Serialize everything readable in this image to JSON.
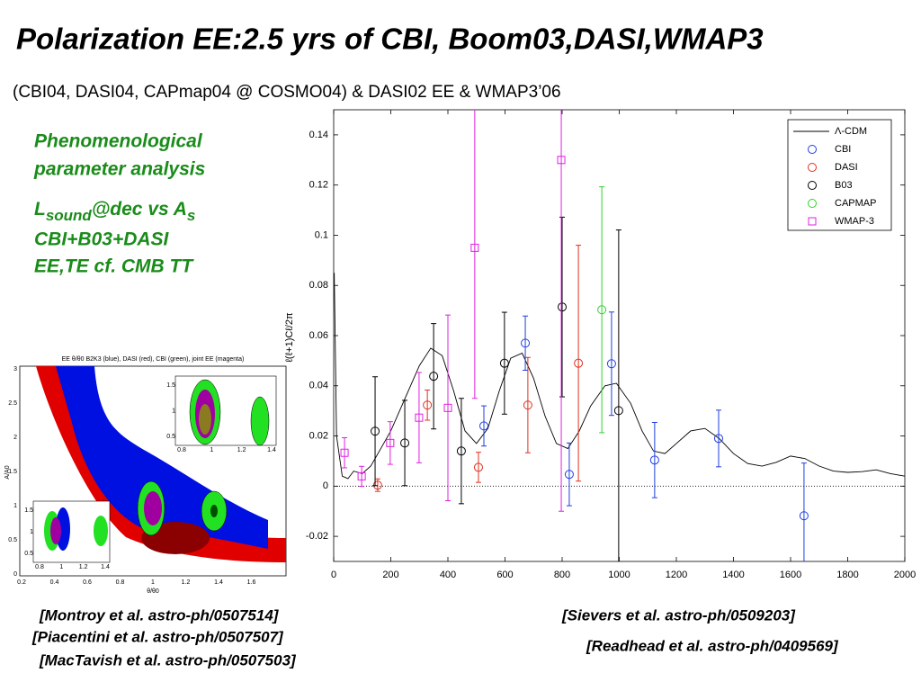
{
  "slide": {
    "title": "Polarization EE:2.5 yrs of CBI, Boom03,DASI,WMAP3",
    "subtitle": "(CBI04, DASI04, CAPmap04 @ COSMO04) & DASI02 EE & WMAP3’06",
    "notes": [
      "Phenomenological",
      "parameter analysis",
      "CBI+B03+DASI",
      "EE,TE cf. CMB TT"
    ],
    "sound_line": {
      "main": "L",
      "sub": "sound",
      "rest": "@dec  vs A",
      "sub2": "s"
    },
    "references": [
      "[Montroy et al. astro-ph/0507514]",
      "[Piacentini et al. astro-ph/0507507]",
      "[MacTavish et al. astro-ph/0507503]",
      "[Sievers et al. astro-ph/0509203]",
      "[Readhead et al. astro-ph/0409569]"
    ]
  },
  "inset": {
    "title": "EE θ/θ0 B2K3 (blue), DASI (red), CBI (green), joint EE (magenta)",
    "xlabel": "θ/θ0",
    "ylabel": "A/A0",
    "xticks": [
      "0.2",
      "0.4",
      "0.6",
      "0.8",
      "1",
      "1.2",
      "1.4",
      "1.6"
    ],
    "yticks": [
      "0",
      "0.5",
      "1",
      "1.5",
      "2",
      "2.5",
      "3"
    ],
    "sub_xticks": [
      "0.8",
      "1",
      "1.2",
      "1.4"
    ],
    "sub_yticks": [
      "0.5",
      "1",
      "1.5"
    ]
  },
  "chart_data": {
    "type": "scatter",
    "ylabel": "ℓ(ℓ+1)Cℓ/2π",
    "xlim": [
      0,
      2000
    ],
    "ylim": [
      -0.03,
      0.15
    ],
    "xticks": [
      0,
      200,
      400,
      600,
      800,
      1000,
      1200,
      1400,
      1600,
      1800,
      2000
    ],
    "yticks": [
      -0.02,
      0,
      0.02,
      0.04,
      0.06,
      0.08,
      0.1,
      0.12,
      0.14
    ],
    "zero_line": true,
    "legend": "upper right",
    "series": [
      {
        "name": "Λ-CDM",
        "type": "line",
        "color": "#000000",
        "x": [
          2,
          10,
          30,
          50,
          70,
          100,
          130,
          160,
          200,
          250,
          300,
          340,
          380,
          420,
          460,
          500,
          540,
          580,
          620,
          660,
          700,
          740,
          780,
          820,
          860,
          900,
          950,
          990,
          1040,
          1080,
          1120,
          1160,
          1200,
          1250,
          1300,
          1350,
          1400,
          1450,
          1500,
          1550,
          1600,
          1650,
          1700,
          1750,
          1800,
          1850,
          1900,
          1950,
          2000
        ],
        "values": [
          0.085,
          0.02,
          0.004,
          0.003,
          0.006,
          0.005,
          0.008,
          0.014,
          0.022,
          0.035,
          0.048,
          0.055,
          0.052,
          0.038,
          0.022,
          0.017,
          0.023,
          0.038,
          0.051,
          0.053,
          0.043,
          0.028,
          0.017,
          0.015,
          0.022,
          0.032,
          0.04,
          0.041,
          0.033,
          0.022,
          0.014,
          0.013,
          0.017,
          0.022,
          0.023,
          0.019,
          0.013,
          0.009,
          0.008,
          0.0095,
          0.012,
          0.011,
          0.008,
          0.006,
          0.0055,
          0.0058,
          0.0065,
          0.005,
          0.004
        ]
      },
      {
        "name": "CBI",
        "type": "scatter",
        "marker": "circle",
        "color": "#1f3fe0",
        "x": [
          526,
          671,
          825,
          973,
          1124,
          1348,
          1647
        ],
        "values": [
          0.024,
          0.057,
          0.0047,
          0.0488,
          0.0104,
          0.019,
          -0.0118
        ],
        "errors": [
          0.008,
          0.0108,
          0.0125,
          0.0206,
          0.015,
          0.0113,
          0.021
        ]
      },
      {
        "name": "DASI",
        "type": "scatter",
        "marker": "circle",
        "color": "#e03020",
        "x": [
          154,
          328,
          507,
          680,
          857
        ],
        "values": [
          0.0004,
          0.0323,
          0.0075,
          0.0323,
          0.049
        ],
        "errors": [
          0.0025,
          0.006,
          0.006,
          0.019,
          0.047
        ]
      },
      {
        "name": "B03",
        "type": "scatter",
        "marker": "circle",
        "color": "#000000",
        "x": [
          145,
          249,
          350,
          447,
          598,
          800,
          998
        ],
        "values": [
          0.0219,
          0.0172,
          0.0438,
          0.014,
          0.049,
          0.0714,
          0.0301
        ],
        "errors": [
          0.0217,
          0.017,
          0.021,
          0.021,
          0.0203,
          0.0358,
          0.072
        ]
      },
      {
        "name": "CAPMAP",
        "type": "scatter",
        "marker": "circle",
        "color": "#30d030",
        "x": [
          939
        ],
        "values": [
          0.0703
        ],
        "errors": [
          0.049
        ]
      },
      {
        "name": "WMAP-3",
        "type": "scatter",
        "marker": "square",
        "color": "#e020e0",
        "x": [
          38,
          98,
          198,
          299,
          400,
          494,
          797
        ],
        "values": [
          0.0133,
          0.0039,
          0.0172,
          0.0273,
          0.0312,
          0.095,
          0.13
        ],
        "errors": [
          0.006,
          0.004,
          0.0085,
          0.018,
          0.037,
          0.06,
          0.14
        ]
      }
    ]
  }
}
